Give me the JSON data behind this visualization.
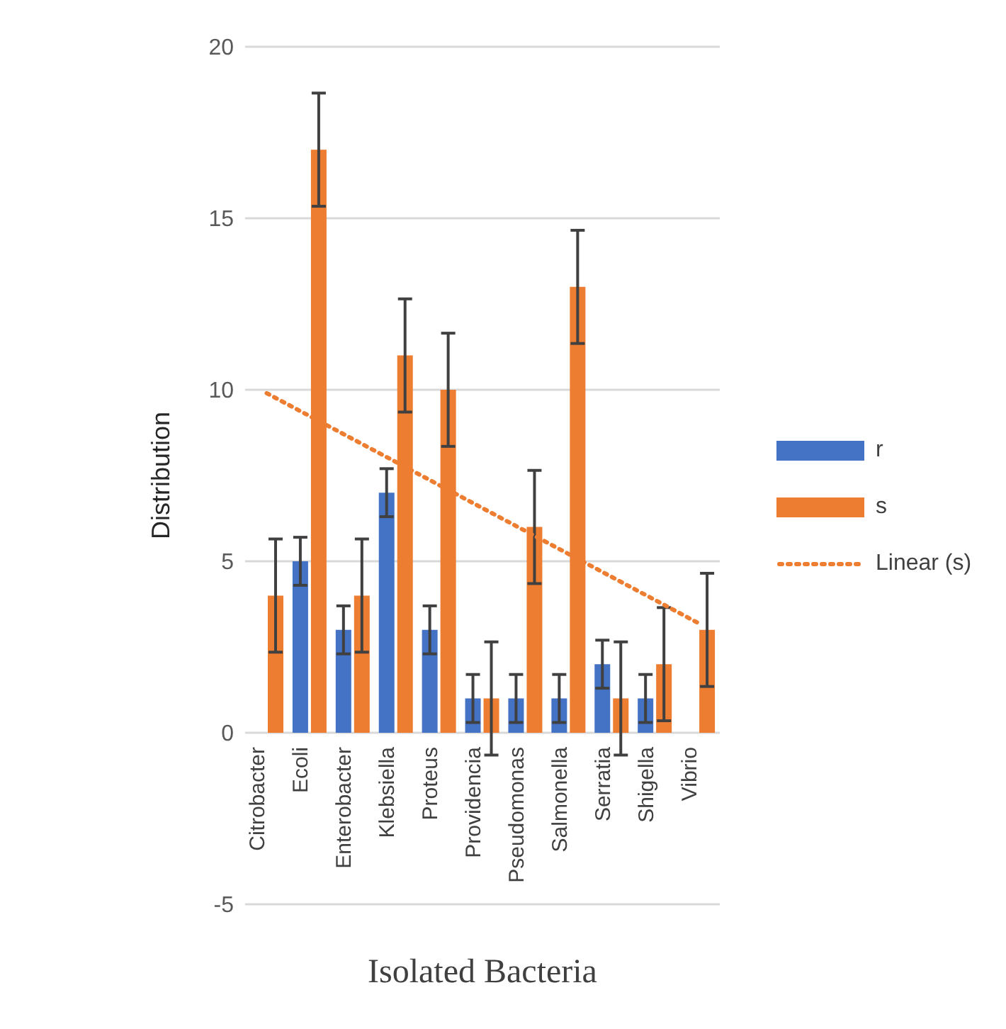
{
  "chart_data": {
    "type": "bar",
    "xlabel": "Isolated Bacteria",
    "ylabel": "Distribution",
    "categories": [
      "Citrobacter",
      "Ecoli",
      "Enterobacter",
      "Klebsiella",
      "Proteus",
      "Providencia",
      "Pseudomonas",
      "Salmonella",
      "Serratia",
      "Shigella",
      "Vibrio"
    ],
    "series": [
      {
        "name": "r",
        "color": "#4472c4",
        "values": [
          0,
          5,
          3,
          7,
          3,
          1,
          1,
          1,
          2,
          1,
          0
        ],
        "errors": [
          null,
          0.7,
          0.7,
          0.7,
          0.7,
          0.7,
          0.7,
          0.7,
          0.7,
          0.7,
          null
        ]
      },
      {
        "name": "s",
        "color": "#ed7d31",
        "values": [
          4,
          17,
          4,
          11,
          10,
          1,
          6,
          13,
          1,
          2,
          3
        ],
        "errors": [
          1.65,
          1.65,
          1.65,
          1.65,
          1.65,
          1.65,
          1.65,
          1.65,
          1.65,
          1.65,
          1.65
        ]
      },
      {
        "name": "Linear (s)",
        "type": "line",
        "line_style": "dotted",
        "color": "#ed7d31",
        "x": [
          "Citrobacter",
          "Vibrio"
        ],
        "values": [
          9.9,
          3.2
        ]
      }
    ],
    "ylim": [
      -5,
      20
    ],
    "yticks": [
      -5,
      0,
      5,
      10,
      15,
      20
    ],
    "grid": "y",
    "legend": "right"
  }
}
